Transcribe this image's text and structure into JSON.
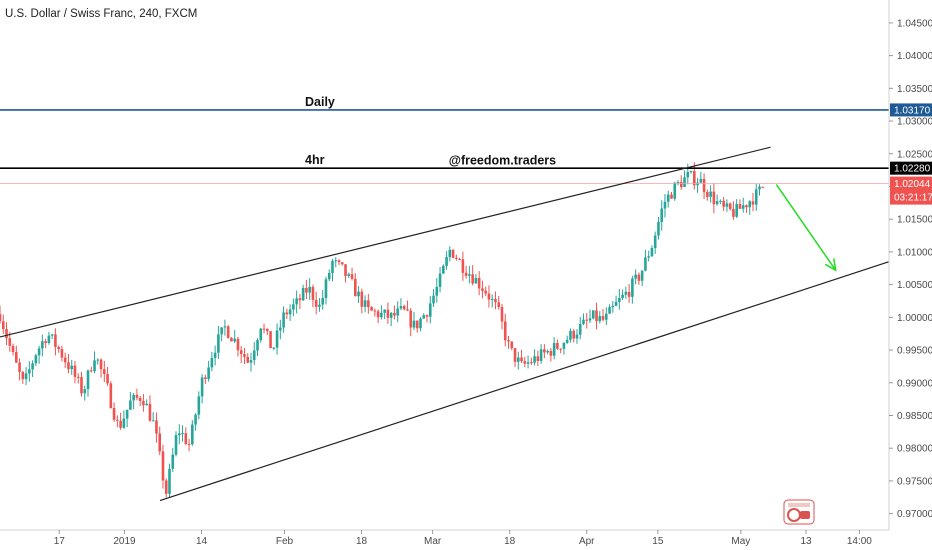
{
  "header": {
    "title": "U.S. Dollar / Swiss Franc, 240, FXCM"
  },
  "colors": {
    "up": "#26a69a",
    "down": "#ef5350",
    "daily_line": "#1e5a96",
    "h4_line": "#000000",
    "price_line": "#f3a3a3",
    "arrow": "#22dd22",
    "current_badge": "#ef5350",
    "daily_badge": "#1e5a96",
    "h4_badge": "#000000"
  },
  "icons": {
    "watermark": "tradingview-logo-icon"
  },
  "chart_data": {
    "type": "candlestick",
    "title": "U.S. Dollar / Swiss Franc, 240, FXCM",
    "y_ticks": [
      "1.04500",
      "1.04000",
      "1.03500",
      "1.03000",
      "1.02500",
      "1.02000",
      "1.01500",
      "1.01000",
      "1.00500",
      "1.00000",
      "0.99500",
      "0.99000",
      "0.98500",
      "0.98000",
      "0.97500",
      "0.97000"
    ],
    "ylim": [
      0.9675,
      1.0485
    ],
    "x_ticks": [
      {
        "label": "17",
        "t": 10
      },
      {
        "label": "2019",
        "t": 21
      },
      {
        "label": "14",
        "t": 34
      },
      {
        "label": "Feb",
        "t": 48
      },
      {
        "label": "18",
        "t": 61
      },
      {
        "label": "Mar",
        "t": 73
      },
      {
        "label": "18",
        "t": 86
      },
      {
        "label": "Apr",
        "t": 99
      },
      {
        "label": "15",
        "t": 111
      },
      {
        "label": "May",
        "t": 125
      },
      {
        "label": "13",
        "t": 136
      },
      {
        "label": "14:00",
        "t": 145
      }
    ],
    "xlim": [
      0,
      150
    ],
    "path": [
      [
        0,
        1.0005
      ],
      [
        2,
        0.9945
      ],
      [
        4,
        0.9895
      ],
      [
        6,
        0.9945
      ],
      [
        8,
        0.9975
      ],
      [
        10,
        0.995
      ],
      [
        12,
        0.992
      ],
      [
        14,
        0.9885
      ],
      [
        16,
        0.9945
      ],
      [
        18,
        0.9895
      ],
      [
        20,
        0.983
      ],
      [
        22,
        0.987
      ],
      [
        24,
        0.988
      ],
      [
        26,
        0.9835
      ],
      [
        28,
        0.973
      ],
      [
        30,
        0.983
      ],
      [
        32,
        0.9805
      ],
      [
        34,
        0.99
      ],
      [
        36,
        0.995
      ],
      [
        38,
        0.9985
      ],
      [
        40,
        0.996
      ],
      [
        42,
        0.993
      ],
      [
        44,
        0.999
      ],
      [
        46,
        0.995
      ],
      [
        48,
        1.0005
      ],
      [
        50,
        1.002
      ],
      [
        52,
        1.0045
      ],
      [
        54,
        1.0015
      ],
      [
        56,
        1.0085
      ],
      [
        58,
        1.007
      ],
      [
        60,
        1.004
      ],
      [
        62,
        1.001
      ],
      [
        64,
        1.0005
      ],
      [
        66,
        1.0
      ],
      [
        68,
        1.001
      ],
      [
        70,
        0.9985
      ],
      [
        72,
        1.001
      ],
      [
        74,
        1.005
      ],
      [
        76,
        1.0105
      ],
      [
        78,
        1.008
      ],
      [
        80,
        1.006
      ],
      [
        82,
        1.004
      ],
      [
        84,
        1.001
      ],
      [
        86,
        0.995
      ],
      [
        88,
        0.9925
      ],
      [
        90,
        0.9935
      ],
      [
        92,
        0.9945
      ],
      [
        94,
        0.9955
      ],
      [
        96,
        0.997
      ],
      [
        98,
        0.9985
      ],
      [
        100,
        1.0
      ],
      [
        102,
        0.9995
      ],
      [
        104,
        1.002
      ],
      [
        106,
        1.004
      ],
      [
        108,
        1.0065
      ],
      [
        110,
        1.011
      ],
      [
        112,
        1.0175
      ],
      [
        114,
        1.02
      ],
      [
        116,
        1.0215
      ],
      [
        118,
        1.021
      ],
      [
        120,
        1.0185
      ],
      [
        122,
        1.0165
      ],
      [
        124,
        1.016
      ],
      [
        126,
        1.0175
      ],
      [
        128,
        1.019
      ],
      [
        129,
        1.0204
      ]
    ],
    "channel_upper": [
      [
        0,
        0.997
      ],
      [
        130,
        1.026
      ]
    ],
    "channel_lower": [
      [
        27,
        0.972
      ],
      [
        150,
        1.0085
      ]
    ],
    "levels": {
      "daily": {
        "label": "Daily",
        "value": 1.0317,
        "badge": "1.03170"
      },
      "h4": {
        "label": "4hr",
        "value": 1.0228,
        "badge": "1.02280"
      },
      "current": {
        "value": 1.02044,
        "badge": "1.02044",
        "countdown": "03:21:17"
      }
    },
    "arrow": {
      "from": [
        131,
        1.0203
      ],
      "to": [
        141,
        1.0072
      ]
    },
    "annotation": {
      "text": "@freedom.traders",
      "t": 85,
      "y": 1.024
    }
  }
}
